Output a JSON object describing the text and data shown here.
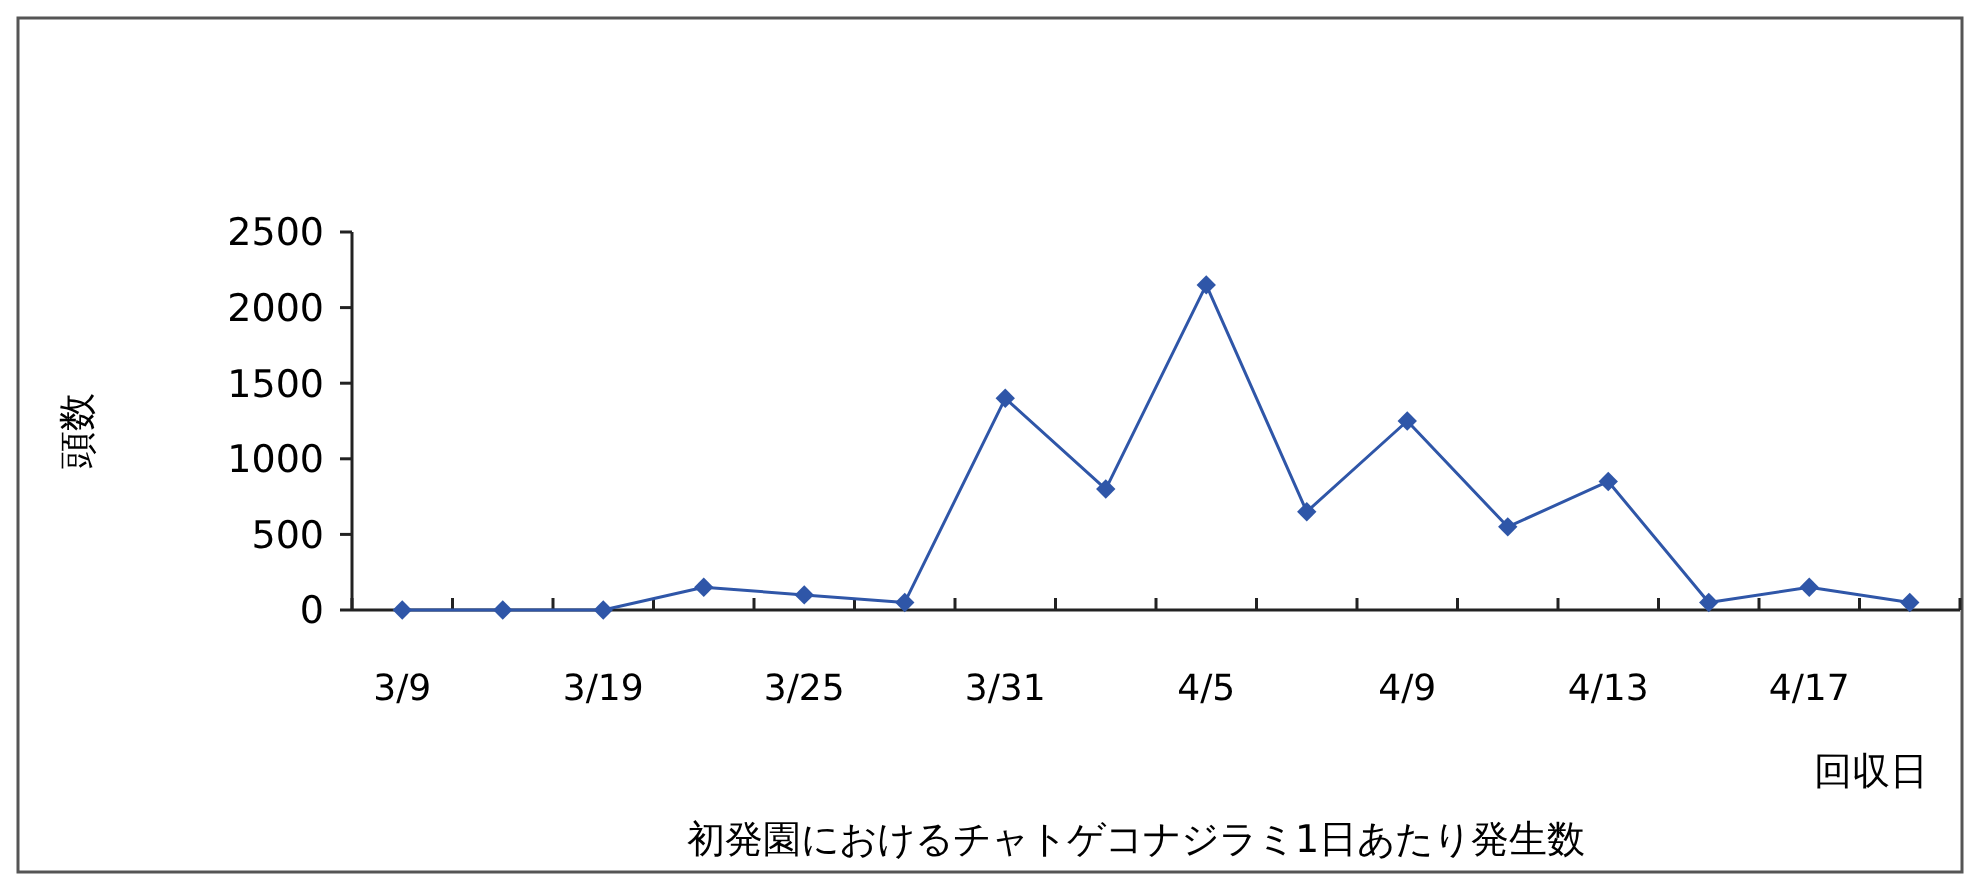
{
  "chart_data": {
    "type": "line",
    "title": "初発園におけるチャトゲコナジラミ1日あたり発生数",
    "xlabel": "回収日",
    "ylabel": "頭数",
    "categories": [
      "3/9",
      null,
      "3/19",
      null,
      "3/25",
      null,
      "3/31",
      null,
      "4/5",
      null,
      "4/9",
      null,
      "4/13",
      null,
      "4/17",
      null
    ],
    "series": [
      {
        "color": "#2f56a8",
        "values": [
          0,
          0,
          0,
          150,
          100,
          50,
          1400,
          800,
          2150,
          650,
          1250,
          550,
          850,
          50,
          150,
          50
        ]
      }
    ],
    "ylim": [
      0,
      2500
    ],
    "yticks": [
      0,
      500,
      1000,
      1500,
      2000,
      2500
    ],
    "marker": "diamond",
    "line_style": "solid",
    "grid": false
  }
}
